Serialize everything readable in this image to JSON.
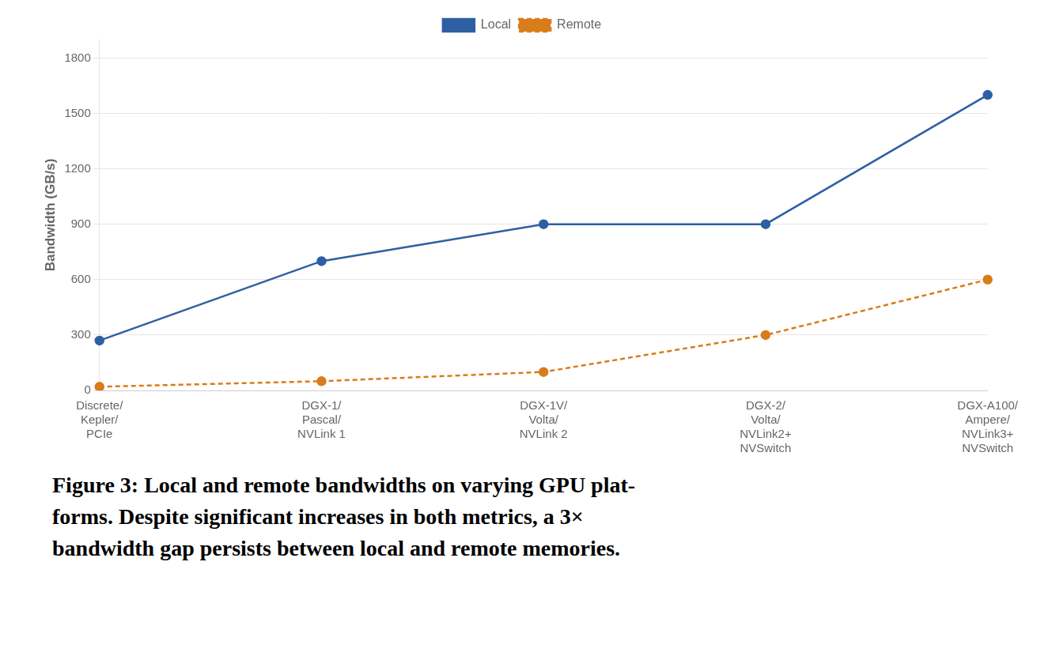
{
  "chart_data": {
    "type": "line",
    "categories": [
      "Discrete/\nKepler/\nPCIe",
      "DGX-1/\nPascal/\nNVLink 1",
      "DGX-1V/\nVolta/\nNVLink 2",
      "DGX-2/\nVolta/\nNVLink2+\nNVSwitch",
      "DGX-A100/\nAmpere/\nNVLink3+\nNVSwitch"
    ],
    "series": [
      {
        "name": "Local",
        "color": "#2e5fa3",
        "values": [
          270,
          700,
          900,
          900,
          1600
        ],
        "line_style": "solid",
        "marker": "circle"
      },
      {
        "name": "Remote",
        "color": "#d97c1a",
        "values": [
          20,
          50,
          100,
          300,
          600
        ],
        "line_style": "dashed",
        "marker": "circle"
      }
    ],
    "ylabel": "Bandwidth (GB/s)",
    "ylim": [
      0,
      1900
    ],
    "yticks": [
      0,
      300,
      600,
      900,
      1200,
      1500,
      1800
    ],
    "grid": true,
    "legend": "top",
    "annotations": [
      "Figure 3: Local and remote bandwidths on varying GPU plat-",
      "forms. Despite significant increases in both metrics, a 3×",
      "bandwidth gap persists between local and remote memories."
    ]
  }
}
